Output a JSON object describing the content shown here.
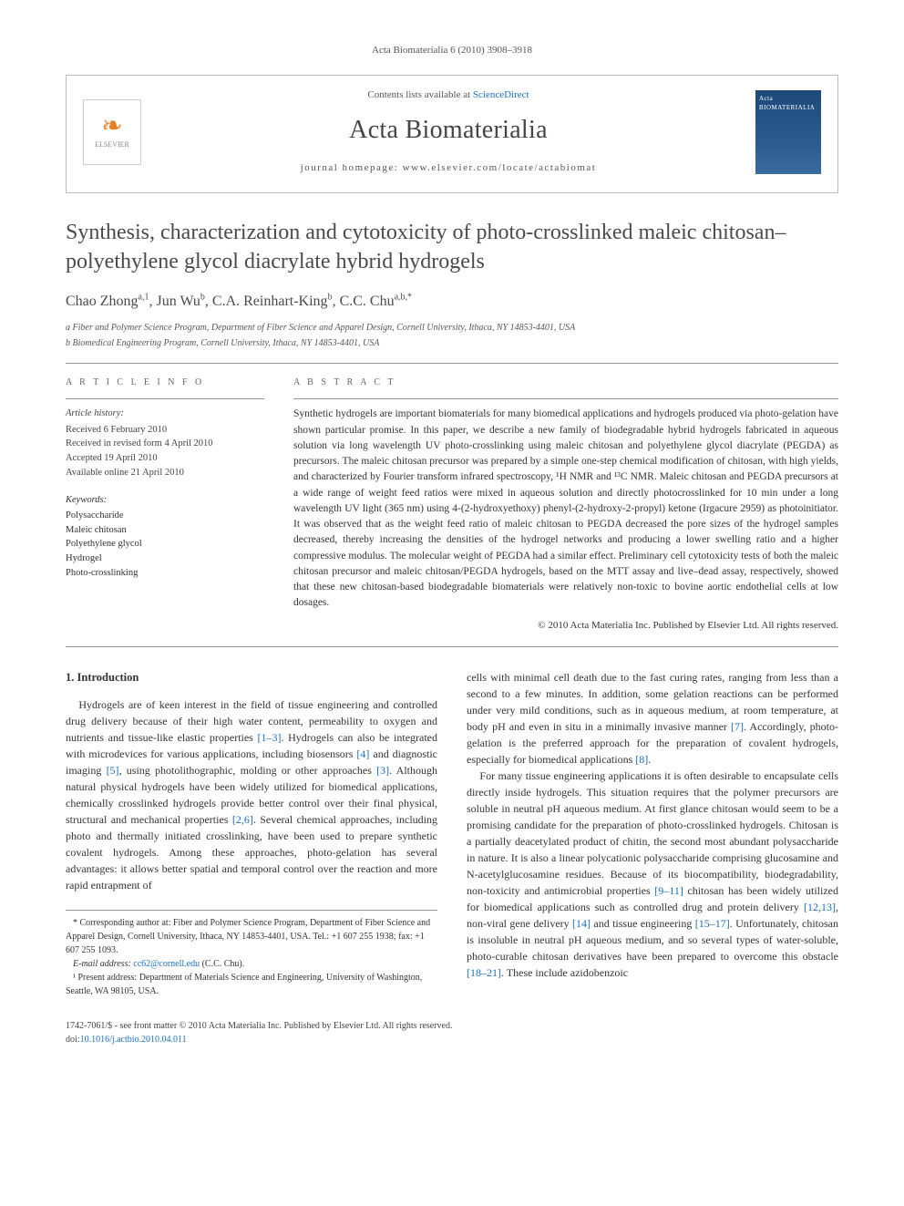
{
  "journal_ref": "Acta Biomaterialia 6 (2010) 3908–3918",
  "header": {
    "contents_prefix": "Contents lists available at ",
    "contents_link": "ScienceDirect",
    "journal_name": "Acta Biomaterialia",
    "homepage_prefix": "journal homepage: ",
    "homepage_url": "www.elsevier.com/locate/actabiomat",
    "elsevier_label": "ELSEVIER",
    "cover_title": "Acta BIOMATERIALIA"
  },
  "title": "Synthesis, characterization and cytotoxicity of photo-crosslinked maleic chitosan–polyethylene glycol diacrylate hybrid hydrogels",
  "authors_html": "Chao Zhong<sup>a,1</sup>, Jun Wu<sup>b</sup>, C.A. Reinhart-King<sup>b</sup>, C.C. Chu<sup>a,b,*</sup>",
  "affiliations": [
    "a Fiber and Polymer Science Program, Department of Fiber Science and Apparel Design, Cornell University, Ithaca, NY 14853-4401, USA",
    "b Biomedical Engineering Program, Cornell University, Ithaca, NY 14853-4401, USA"
  ],
  "article_info": {
    "heading": "A R T I C L E   I N F O",
    "history_label": "Article history:",
    "history": [
      "Received 6 February 2010",
      "Received in revised form 4 April 2010",
      "Accepted 19 April 2010",
      "Available online 21 April 2010"
    ],
    "keywords_label": "Keywords:",
    "keywords": [
      "Polysaccharide",
      "Maleic chitosan",
      "Polyethylene glycol",
      "Hydrogel",
      "Photo-crosslinking"
    ]
  },
  "abstract": {
    "heading": "A B S T R A C T",
    "text": "Synthetic hydrogels are important biomaterials for many biomedical applications and hydrogels produced via photo-gelation have shown particular promise. In this paper, we describe a new family of biodegradable hybrid hydrogels fabricated in aqueous solution via long wavelength UV photo-crosslinking using maleic chitosan and polyethylene glycol diacrylate (PEGDA) as precursors. The maleic chitosan precursor was prepared by a simple one-step chemical modification of chitosan, with high yields, and characterized by Fourier transform infrared spectroscopy, ¹H NMR and ¹³C NMR. Maleic chitosan and PEGDA precursors at a wide range of weight feed ratios were mixed in aqueous solution and directly photocrosslinked for 10 min under a long wavelength UV light (365 nm) using 4-(2-hydroxyethoxy) phenyl-(2-hydroxy-2-propyl) ketone (Irgacure 2959) as photoinitiator. It was observed that as the weight feed ratio of maleic chitosan to PEGDA decreased the pore sizes of the hydrogel samples decreased, thereby increasing the densities of the hydrogel networks and producing a lower swelling ratio and a higher compressive modulus. The molecular weight of PEGDA had a similar effect. Preliminary cell cytotoxicity tests of both the maleic chitosan precursor and maleic chitosan/PEGDA hydrogels, based on the MTT assay and live–dead assay, respectively, showed that these new chitosan-based biodegradable biomaterials were relatively non-toxic to bovine aortic endothelial cells at low dosages.",
    "copyright": "© 2010 Acta Materialia Inc. Published by Elsevier Ltd. All rights reserved."
  },
  "body": {
    "section_heading": "1. Introduction",
    "col1_p1": "Hydrogels are of keen interest in the field of tissue engineering and controlled drug delivery because of their high water content, permeability to oxygen and nutrients and tissue-like elastic properties [1–3]. Hydrogels can also be integrated with microdevices for various applications, including biosensors [4] and diagnostic imaging [5], using photolithographic, molding or other approaches [3]. Although natural physical hydrogels have been widely utilized for biomedical applications, chemically crosslinked hydrogels provide better control over their final physical, structural and mechanical properties [2,6]. Several chemical approaches, including photo and thermally initiated crosslinking, have been used to prepare synthetic covalent hydrogels. Among these approaches, photo-gelation has several advantages: it allows better spatial and temporal control over the reaction and more rapid entrapment of",
    "col2_p1": "cells with minimal cell death due to the fast curing rates, ranging from less than a second to a few minutes. In addition, some gelation reactions can be performed under very mild conditions, such as in aqueous medium, at room temperature, at body pH and even in situ in a minimally invasive manner [7]. Accordingly, photo-gelation is the preferred approach for the preparation of covalent hydrogels, especially for biomedical applications [8].",
    "col2_p2": "For many tissue engineering applications it is often desirable to encapsulate cells directly inside hydrogels. This situation requires that the polymer precursors are soluble in neutral pH aqueous medium. At first glance chitosan would seem to be a promising candidate for the preparation of photo-crosslinked hydrogels. Chitosan is a partially deacetylated product of chitin, the second most abundant polysaccharide in nature. It is also a linear polycationic polysaccharide comprising glucosamine and N-acetylglucosamine residues. Because of its biocompatibility, biodegradability, non-toxicity and antimicrobial properties [9–11] chitosan has been widely utilized for biomedical applications such as controlled drug and protein delivery [12,13], non-viral gene delivery [14] and tissue engineering [15–17]. Unfortunately, chitosan is insoluble in neutral pH aqueous medium, and so several types of water-soluble, photo-curable chitosan derivatives have been prepared to overcome this obstacle [18–21]. These include azidobenzoic"
  },
  "footnotes": {
    "corresponding": "* Corresponding author at: Fiber and Polymer Science Program, Department of Fiber Science and Apparel Design, Cornell University, Ithaca, NY 14853-4401, USA. Tel.: +1 607 255 1938; fax: +1 607 255 1093.",
    "email_label": "E-mail address: ",
    "email": "cc62@cornell.edu",
    "email_name": " (C.C. Chu).",
    "present": "¹ Present address: Department of Materials Science and Engineering, University of Washington, Seattle, WA 98105, USA."
  },
  "footer": {
    "line1": "1742-7061/$ - see front matter © 2010 Acta Materialia Inc. Published by Elsevier Ltd. All rights reserved.",
    "doi_prefix": "doi:",
    "doi": "10.1016/j.actbio.2010.04.011"
  },
  "refs": {
    "r1_3": "[1–3]",
    "r4": "[4]",
    "r5": "[5]",
    "r3": "[3]",
    "r2_6": "[2,6]",
    "r7": "[7]",
    "r8": "[8]",
    "r9_11": "[9–11]",
    "r12_13": "[12,13]",
    "r14": "[14]",
    "r15_17": "[15–17]",
    "r18_21": "[18–21]"
  }
}
